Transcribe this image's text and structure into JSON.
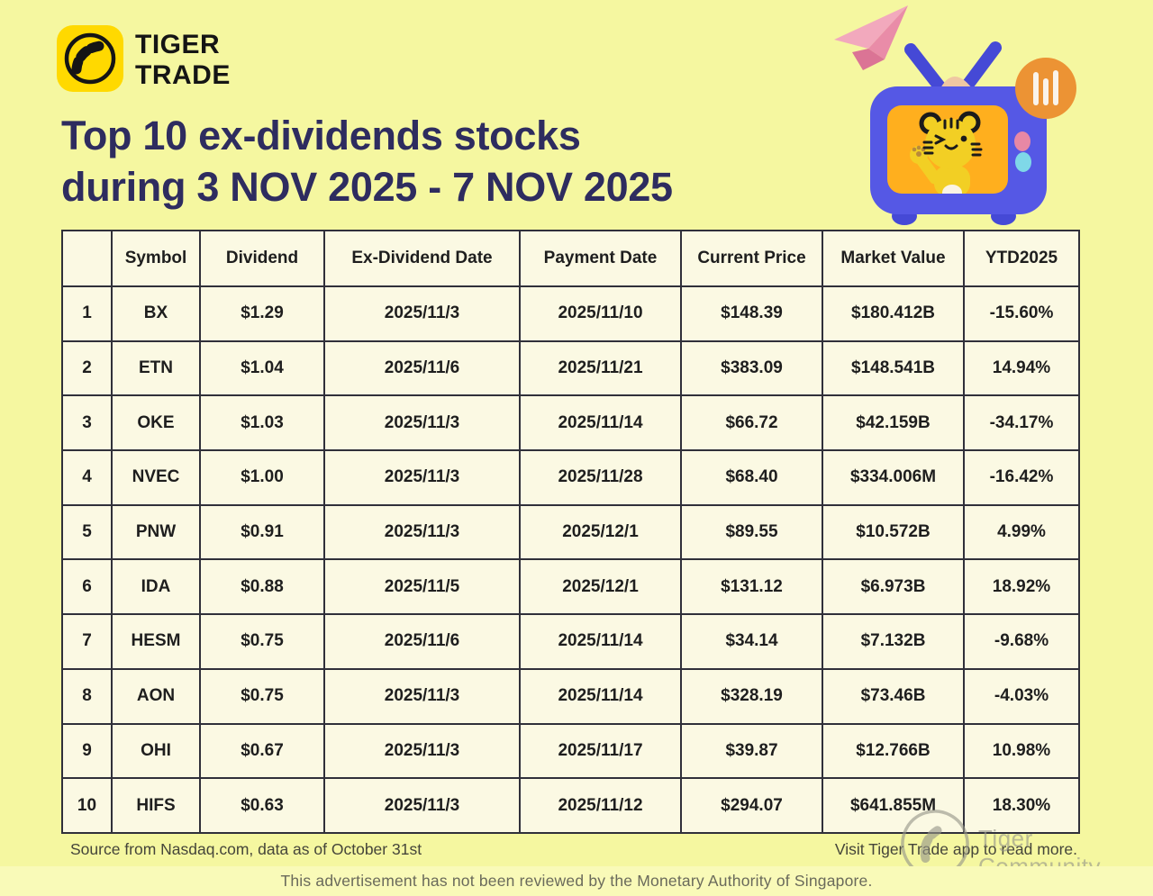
{
  "brand": {
    "line1": "TIGER",
    "line2": "TRADE"
  },
  "title": {
    "line1": "Top 10 ex-dividends stocks",
    "line2": "during 3 NOV 2025 - 7 NOV 2025"
  },
  "table": {
    "columns": [
      "",
      "Symbol",
      "Dividend",
      "Ex-Dividend Date",
      "Payment Date",
      "Current Price",
      "Market Value",
      "YTD2025"
    ],
    "row_keys": [
      "rank",
      "symbol",
      "dividend",
      "ex_dividend_date",
      "payment_date",
      "current_price",
      "market_value",
      "ytd2025"
    ],
    "rows": [
      {
        "rank": "1",
        "symbol": "BX",
        "dividend": "$1.29",
        "ex_dividend_date": "2025/11/3",
        "payment_date": "2025/11/10",
        "current_price": "$148.39",
        "market_value": "$180.412B",
        "ytd2025": "-15.60%"
      },
      {
        "rank": "2",
        "symbol": "ETN",
        "dividend": "$1.04",
        "ex_dividend_date": "2025/11/6",
        "payment_date": "2025/11/21",
        "current_price": "$383.09",
        "market_value": "$148.541B",
        "ytd2025": "14.94%"
      },
      {
        "rank": "3",
        "symbol": "OKE",
        "dividend": "$1.03",
        "ex_dividend_date": "2025/11/3",
        "payment_date": "2025/11/14",
        "current_price": "$66.72",
        "market_value": "$42.159B",
        "ytd2025": "-34.17%"
      },
      {
        "rank": "4",
        "symbol": "NVEC",
        "dividend": "$1.00",
        "ex_dividend_date": "2025/11/3",
        "payment_date": "2025/11/28",
        "current_price": "$68.40",
        "market_value": "$334.006M",
        "ytd2025": "-16.42%"
      },
      {
        "rank": "5",
        "symbol": "PNW",
        "dividend": "$0.91",
        "ex_dividend_date": "2025/11/3",
        "payment_date": "2025/12/1",
        "current_price": "$89.55",
        "market_value": "$10.572B",
        "ytd2025": "4.99%"
      },
      {
        "rank": "6",
        "symbol": "IDA",
        "dividend": "$0.88",
        "ex_dividend_date": "2025/11/5",
        "payment_date": "2025/12/1",
        "current_price": "$131.12",
        "market_value": "$6.973B",
        "ytd2025": "18.92%"
      },
      {
        "rank": "7",
        "symbol": "HESM",
        "dividend": "$0.75",
        "ex_dividend_date": "2025/11/6",
        "payment_date": "2025/11/14",
        "current_price": "$34.14",
        "market_value": "$7.132B",
        "ytd2025": "-9.68%"
      },
      {
        "rank": "8",
        "symbol": "AON",
        "dividend": "$0.75",
        "ex_dividend_date": "2025/11/3",
        "payment_date": "2025/11/14",
        "current_price": "$328.19",
        "market_value": "$73.46B",
        "ytd2025": "-4.03%"
      },
      {
        "rank": "9",
        "symbol": "OHI",
        "dividend": "$0.67",
        "ex_dividend_date": "2025/11/3",
        "payment_date": "2025/11/17",
        "current_price": "$39.87",
        "market_value": "$12.766B",
        "ytd2025": "10.98%"
      },
      {
        "rank": "10",
        "symbol": "HIFS",
        "dividend": "$0.63",
        "ex_dividend_date": "2025/11/3",
        "payment_date": "2025/11/12",
        "current_price": "$294.07",
        "market_value": "$641.855M",
        "ytd2025": "18.30%"
      }
    ]
  },
  "footer": {
    "source": "Source from Nasdaq.com, data as of October 31st",
    "visit": "Visit Tiger Trade app to read more.",
    "disclaimer": "This advertisement has not been reviewed by the Monetary Authority of Singapore."
  },
  "watermark": {
    "label": "Tiger Community"
  },
  "icons": {
    "logo": "tiger-tail-logo-icon",
    "plane": "paper-plane-icon",
    "tv": "tv-with-tiger-mascot-icon",
    "badge": "bar-chart-badge-icon",
    "stamp": "tiger-community-stamp-icon"
  },
  "colors": {
    "background": "#F5F7A0",
    "band": "#F9FAB8",
    "cell_bg": "#FBF9E3",
    "border": "#30303A",
    "title": "#2E2C5F",
    "text": "#1E1E1E",
    "ink": "#1E1E1E",
    "footer_text": "#45453A",
    "band_text": "#6A6A5B",
    "logo_yellow": "#FFD900",
    "tv_blue": "#5558E5",
    "tv_blue_dark": "#4549D6",
    "screen_orange": "#FFAF1E",
    "badge_orange": "#EC9334",
    "tiger_yellow": "#F2CF24",
    "plane_pink": "#F2A9BD",
    "plane_pink_mid": "#E98CA8",
    "plane_pink_dark": "#DB7495",
    "btn_pink": "#E888A5",
    "btn_cyan": "#7FD8E8",
    "cone_beige": "#EFC7A2",
    "belly_white": "#FBF4E4",
    "pad_brown": "#B98A3A",
    "bar_white": "#FAF3EA",
    "watermark_gray": "#96968A"
  }
}
